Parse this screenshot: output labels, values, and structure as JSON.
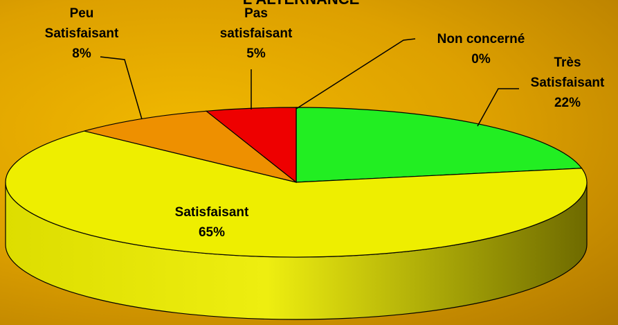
{
  "chart_data": {
    "type": "pie3d",
    "title": "L'ALTERNANCE",
    "categories": [
      "Très\nSatisfaisant",
      "Satisfaisant",
      "Peu\nSatisfaisant",
      "Pas\nsatisfaisant",
      "Non concerné"
    ],
    "values": [
      22,
      65,
      8,
      5,
      0
    ],
    "value_labels": [
      "22%",
      "65%",
      "8%",
      "5%",
      "0%"
    ],
    "colors": [
      "#22ee22",
      "#eeee00",
      "#ee9000",
      "#ee0000",
      "#888888"
    ]
  }
}
